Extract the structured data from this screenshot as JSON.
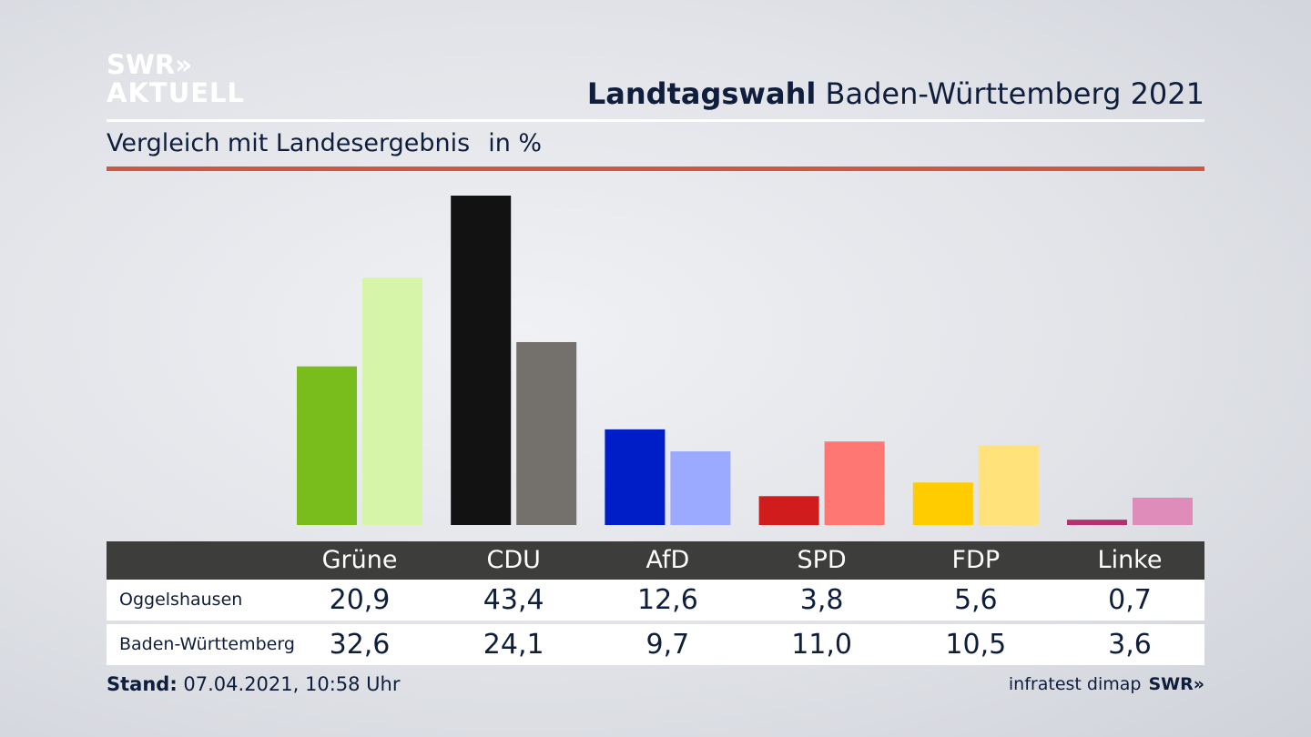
{
  "logo": {
    "line1": "SWR»",
    "line2": "AKTUELL"
  },
  "header": {
    "title_bold": "Landtagswahl",
    "title_rest": " Baden-Württemberg 2021"
  },
  "subtitle": {
    "text": "Vergleich mit Landesergebnis",
    "unit": "in %"
  },
  "table": {
    "rows": [
      {
        "label": "Oggelshausen",
        "values": [
          "20,9",
          "43,4",
          "12,6",
          "3,8",
          "5,6",
          "0,7"
        ]
      },
      {
        "label": "Baden-Württemberg",
        "values": [
          "32,6",
          "24,1",
          "9,7",
          "11,0",
          "10,5",
          "3,6"
        ]
      }
    ]
  },
  "footer": {
    "stand_label": "Stand:",
    "stand_value": " 07.04.2021, 10:58 Uhr",
    "source": "infratest dimap",
    "source_logo": "SWR»"
  },
  "chart_data": {
    "type": "bar",
    "title": "Landtagswahl Baden-Württemberg 2021",
    "subtitle": "Vergleich mit Landesergebnis in %",
    "categories": [
      "Grüne",
      "CDU",
      "AfD",
      "SPD",
      "FDP",
      "Linke"
    ],
    "series": [
      {
        "name": "Oggelshausen",
        "values": [
          20.9,
          43.4,
          12.6,
          3.8,
          5.6,
          0.7
        ]
      },
      {
        "name": "Baden-Württemberg",
        "values": [
          32.6,
          24.1,
          9.7,
          11.0,
          10.5,
          3.6
        ]
      }
    ],
    "colors": {
      "Oggelshausen": [
        "#78bd1c",
        "#121212",
        "#001ec8",
        "#d11c1e",
        "#ffcc00",
        "#b4306e"
      ],
      "Baden-Württemberg": [
        "#d6f5a9",
        "#74716d",
        "#9ba9ff",
        "#ff7772",
        "#ffe27a",
        "#e08cbb"
      ]
    },
    "ylim": [
      0,
      43.4
    ],
    "grid": false,
    "legend": "table-below"
  }
}
